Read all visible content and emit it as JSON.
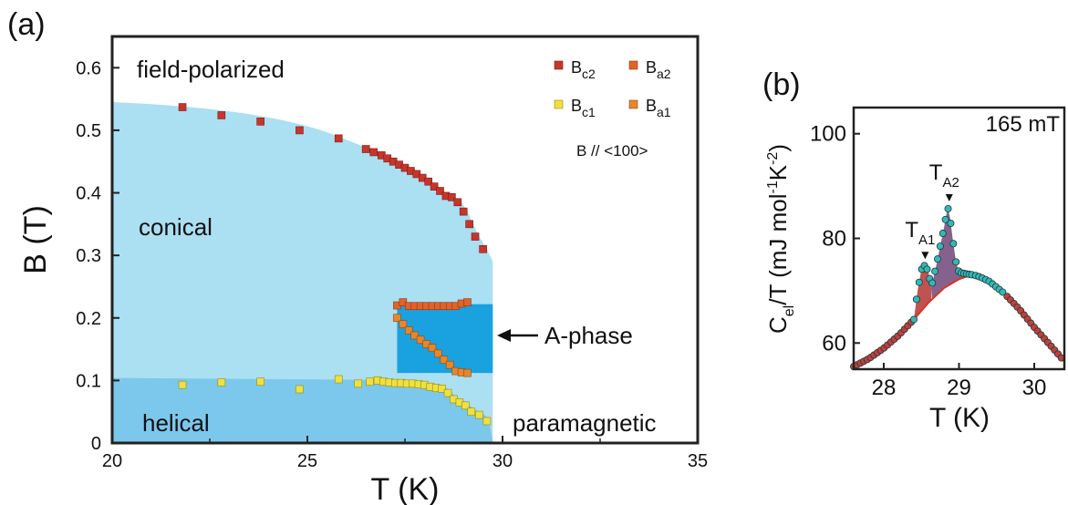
{
  "chart_data": [
    {
      "panel_label": "(a)",
      "type": "scatter",
      "xlabel": "T (K)",
      "ylabel": "B (T)",
      "xlim": [
        20,
        35
      ],
      "ylim": [
        0,
        0.65
      ],
      "x_ticks": [
        20,
        25,
        30,
        35
      ],
      "y_ticks": [
        0,
        0.1,
        0.2,
        0.3,
        0.4,
        0.5,
        0.6
      ],
      "region_labels": {
        "field_polarized": "field-polarized",
        "conical": "conical",
        "helical": "helical",
        "paramagnetic": "paramagnetic",
        "a_phase": "A-phase"
      },
      "legend_note": "B // <100>",
      "colors": {
        "bc2": "#c8352b",
        "ba2": "#e2622a",
        "bc1": "#f0e040",
        "ba1": "#e8862c",
        "conical_fill": "#abdff2",
        "helical_fill": "#7cc8ec",
        "aphase_fill": "#1aa2e0"
      },
      "series": [
        {
          "key": "bc2",
          "legend_main": "B",
          "legend_sub": "c2",
          "x": [
            21.8,
            22.8,
            23.8,
            24.8,
            25.8,
            26.5,
            26.7,
            26.9,
            27.05,
            27.2,
            27.35,
            27.5,
            27.65,
            27.8,
            27.95,
            28.1,
            28.25,
            28.4,
            28.55,
            28.7,
            28.85,
            29.0,
            29.15,
            29.3,
            29.5
          ],
          "y": [
            0.537,
            0.524,
            0.514,
            0.5,
            0.487,
            0.47,
            0.465,
            0.46,
            0.455,
            0.45,
            0.445,
            0.44,
            0.435,
            0.43,
            0.424,
            0.418,
            0.41,
            0.403,
            0.395,
            0.393,
            0.385,
            0.37,
            0.35,
            0.33,
            0.31
          ]
        },
        {
          "key": "ba2",
          "legend_main": "B",
          "legend_sub": "a2",
          "x": [
            27.3,
            27.45,
            27.6,
            27.75,
            27.9,
            28.05,
            28.2,
            28.35,
            28.5,
            28.65,
            28.8,
            28.95,
            29.1
          ],
          "y": [
            0.22,
            0.225,
            0.219,
            0.219,
            0.219,
            0.219,
            0.219,
            0.219,
            0.219,
            0.219,
            0.219,
            0.223,
            0.225
          ]
        },
        {
          "key": "bc1",
          "legend_main": "B",
          "legend_sub": "c1",
          "x": [
            21.8,
            22.8,
            23.8,
            24.8,
            25.8,
            26.3,
            26.6,
            26.8,
            26.95,
            27.1,
            27.25,
            27.4,
            27.55,
            27.7,
            27.85,
            28.0,
            28.15,
            28.3,
            28.45,
            28.6,
            28.75,
            28.9,
            29.05,
            29.2,
            29.4,
            29.6
          ],
          "y": [
            0.093,
            0.097,
            0.098,
            0.086,
            0.102,
            0.095,
            0.098,
            0.1,
            0.098,
            0.097,
            0.096,
            0.096,
            0.095,
            0.095,
            0.094,
            0.093,
            0.09,
            0.088,
            0.087,
            0.08,
            0.07,
            0.065,
            0.06,
            0.05,
            0.045,
            0.035
          ]
        },
        {
          "key": "ba1",
          "legend_main": "B",
          "legend_sub": "a1",
          "x": [
            27.3,
            27.45,
            27.6,
            27.75,
            27.9,
            28.05,
            28.2,
            28.35,
            28.5,
            28.65,
            28.8,
            28.95,
            29.1
          ],
          "y": [
            0.2,
            0.19,
            0.18,
            0.172,
            0.165,
            0.158,
            0.152,
            0.143,
            0.133,
            0.125,
            0.115,
            0.113,
            0.112
          ]
        }
      ]
    },
    {
      "panel_label": "(b)",
      "type": "line",
      "xlabel": "T (K)",
      "ylabel": "C_el / T (mJ mol⁻¹ K⁻²)",
      "ylabel_parts": {
        "c": "C",
        "el": "el",
        "rest": "/T (mJ mol",
        "m1": "-1",
        "k": "K",
        "m2": "-2",
        "close": ")"
      },
      "annotation": "165 mT",
      "xlim": [
        27.6,
        30.4
      ],
      "ylim": [
        55,
        105
      ],
      "x_ticks": [
        28,
        29,
        30
      ],
      "y_ticks": [
        60,
        80,
        100
      ],
      "peaks": [
        {
          "main": "T",
          "sub": "A1",
          "x": 28.55,
          "y": 75
        },
        {
          "main": "T",
          "sub": "A2",
          "x": 28.87,
          "y": 86
        }
      ],
      "colors": {
        "background": "#e03020",
        "measured": "#35b8b5",
        "a1_fill": "#b8403c",
        "a2_fill": "#7e5a86",
        "edge": "#7c3a80"
      },
      "background_curve": {
        "x": [
          27.6,
          27.8,
          28.0,
          28.2,
          28.4,
          28.6,
          28.8,
          29.0,
          29.1,
          29.2,
          29.3,
          29.4,
          29.6,
          29.8,
          30.0,
          30.2,
          30.4
        ],
        "y": [
          55.5,
          57.0,
          59.0,
          61.5,
          64.5,
          67.8,
          70.5,
          72.2,
          72.7,
          73.0,
          72.5,
          71.8,
          69.5,
          66.5,
          63.0,
          59.8,
          56.5
        ]
      },
      "measured_curve": {
        "x": [
          28.4,
          28.45,
          28.5,
          28.55,
          28.6,
          28.63,
          28.7,
          28.8,
          28.85,
          28.88,
          28.92,
          28.96,
          29.0,
          29.1,
          29.2
        ],
        "y": [
          64.5,
          70.0,
          74.0,
          75.0,
          73.2,
          70.5,
          75.0,
          82.0,
          86.0,
          84.0,
          79.5,
          75.5,
          73.5,
          73.2,
          73.0
        ]
      }
    }
  ]
}
